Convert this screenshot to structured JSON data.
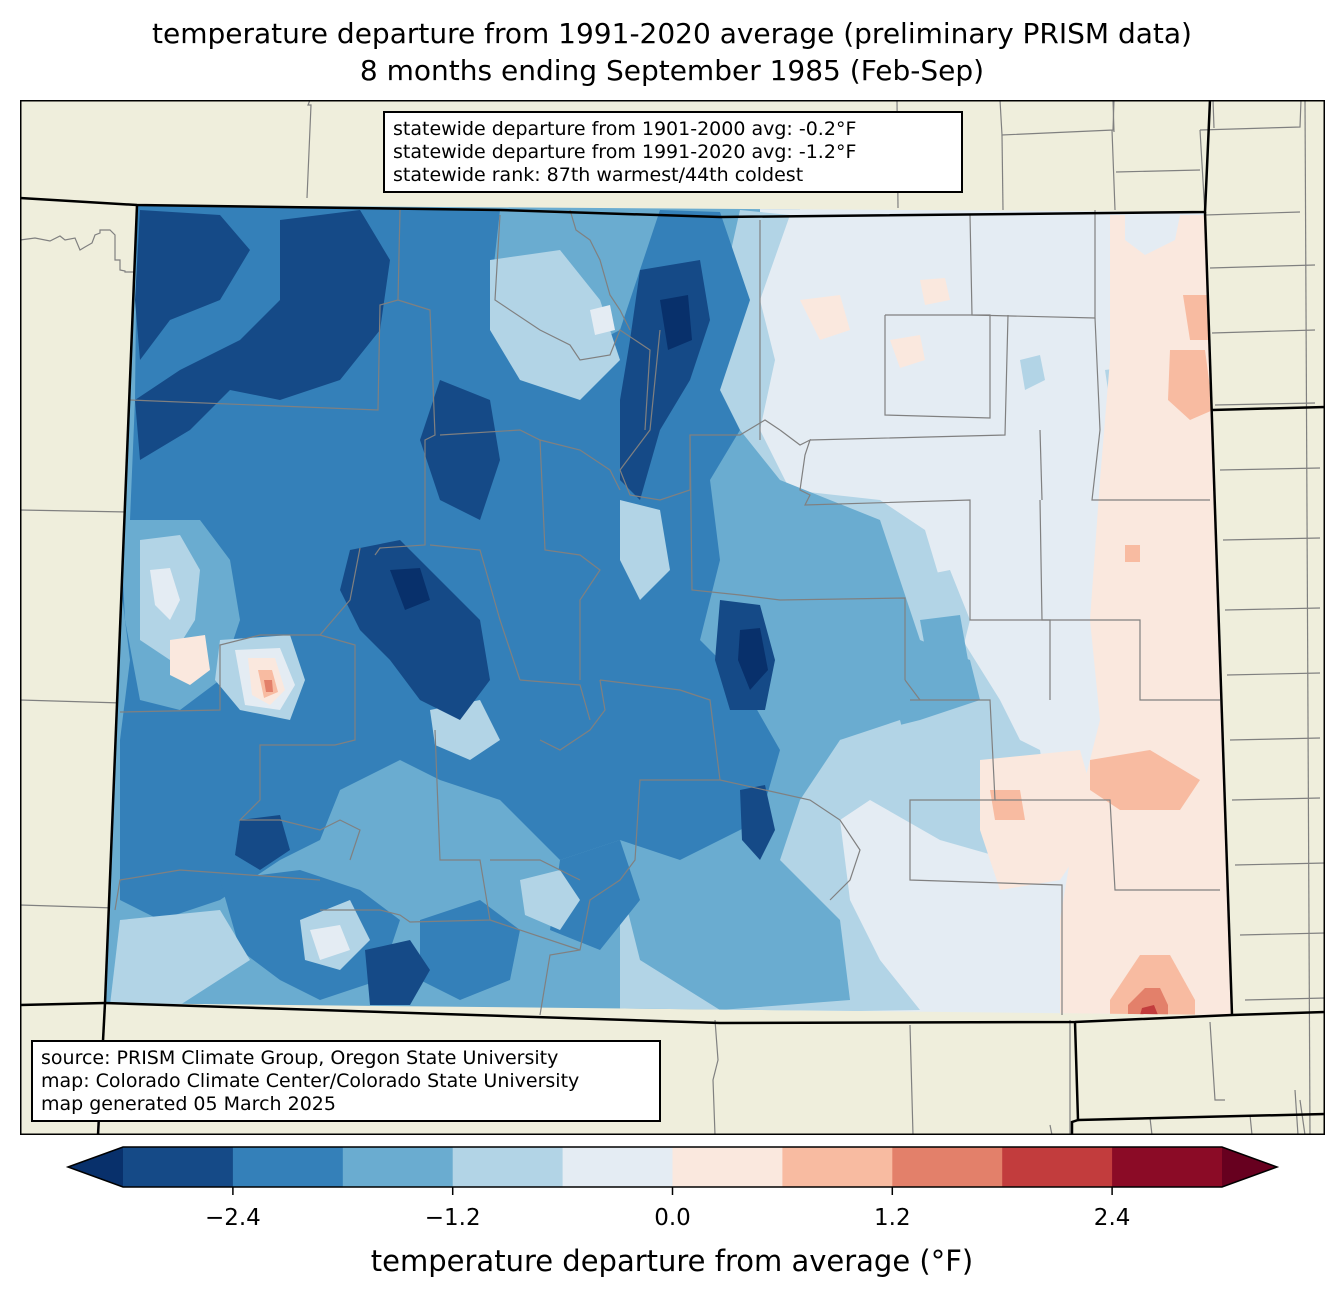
{
  "title": {
    "line1": "temperature departure from 1991-2020 average (preliminary PRISM data)",
    "line2": "8 months ending September 1985 (Feb-Sep)"
  },
  "stats_box": {
    "lines": [
      "statewide departure from 1901-2000 avg: -0.2°F",
      "statewide departure from 1991-2020 avg: -1.2°F",
      "statewide rank: 87th warmest/44th coldest"
    ]
  },
  "source_box": {
    "lines": [
      "source: PRISM Climate Group, Oregon State University",
      "map: Colorado Climate Center/Colorado State University",
      "map generated 05 March 2025"
    ]
  },
  "colors": {
    "land_background": "#efeedc",
    "county_line": "#808080",
    "state_line": "#000000"
  },
  "chart_data": {
    "type": "heatmap",
    "title": "temperature departure from 1991-2020 average (preliminary PRISM data) — 8 months ending September 1985 (Feb-Sep)",
    "region": "Colorado",
    "units": "°F",
    "colorbar": {
      "label": "temperature departure from average (°F)",
      "levels": [
        -3.0,
        -2.4,
        -1.8,
        -1.2,
        -0.6,
        0.0,
        0.6,
        1.2,
        1.8,
        2.4,
        3.0
      ],
      "ticks": [
        -2.4,
        -1.2,
        0.0,
        1.2,
        2.4
      ],
      "tick_labels": [
        "−2.4",
        "−1.2",
        "0.0",
        "1.2",
        "2.4"
      ],
      "extend": "both",
      "under_color": "#08306b",
      "over_color": "#67001f",
      "bins": [
        {
          "min": -3.0,
          "max": -2.4,
          "color": "#154a87"
        },
        {
          "min": -2.4,
          "max": -1.8,
          "color": "#3480b9"
        },
        {
          "min": -1.8,
          "max": -1.2,
          "color": "#6aacd0"
        },
        {
          "min": -1.2,
          "max": -0.6,
          "color": "#b2d4e6"
        },
        {
          "min": -0.6,
          "max": 0.0,
          "color": "#e4ecf3"
        },
        {
          "min": 0.0,
          "max": 0.6,
          "color": "#fae8de"
        },
        {
          "min": 0.6,
          "max": 1.2,
          "color": "#f8bba1"
        },
        {
          "min": 1.2,
          "max": 1.8,
          "color": "#e3806a"
        },
        {
          "min": 1.8,
          "max": 2.4,
          "color": "#c23c3d"
        },
        {
          "min": 2.4,
          "max": 3.0,
          "color": "#8b0b26"
        }
      ]
    },
    "statewide": {
      "departure_1901_2000": -0.2,
      "departure_1991_2020": -1.2,
      "rank_warmest": 87,
      "rank_coldest": 44
    },
    "pattern_summary": {
      "west_and_mountains": "mostly -1.2 to -3.0+ (blues), coldest in northwest and central mountains",
      "eastern_plains": "-0.6 to 0.0 (pale blue)",
      "far_east_border": "0.0 to +1.2, locally +1.8 to +2.4 in far southeast corner"
    }
  }
}
